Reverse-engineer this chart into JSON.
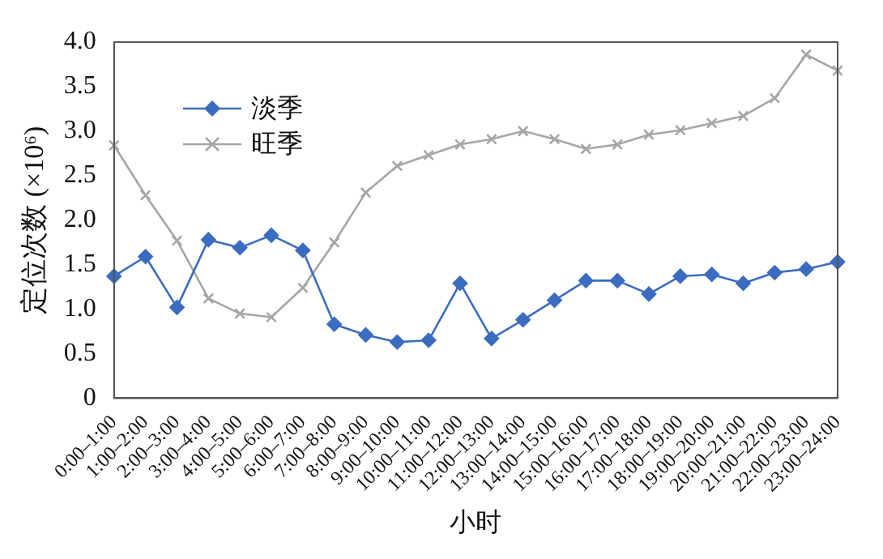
{
  "chart_data": {
    "type": "line",
    "xlabel": "小时",
    "ylabel": "定位次数 (×10⁶)",
    "categories": [
      "0:00–1:00",
      "1:00–2:00",
      "2:00–3:00",
      "3:00–4:00",
      "4:00–5:00",
      "5:00–6:00",
      "6:00–7:00",
      "7:00–8:00",
      "8:00–9:00",
      "9:00–10:00",
      "10:00–11:00",
      "11:00–12:00",
      "12:00–13:00",
      "13:00–14:00",
      "14:00–15:00",
      "15:00–16:00",
      "16:00–17:00",
      "17:00–18:00",
      "18:00–19:00",
      "19:00–20:00",
      "20:00–21:00",
      "21:00–22:00",
      "22:00–23:00",
      "23:00–24:00"
    ],
    "series": [
      {
        "name": "淡季",
        "color": "#3b6cc0",
        "marker": "diamond",
        "values": [
          1.37,
          1.59,
          1.02,
          1.78,
          1.69,
          1.83,
          1.66,
          0.83,
          0.71,
          0.63,
          0.65,
          1.29,
          0.67,
          0.88,
          1.1,
          1.32,
          1.32,
          1.17,
          1.37,
          1.39,
          1.29,
          1.41,
          1.45,
          1.53
        ]
      },
      {
        "name": "旺季",
        "color": "#a6a6a6",
        "marker": "cross",
        "values": [
          2.84,
          2.28,
          1.77,
          1.12,
          0.95,
          0.91,
          1.24,
          1.75,
          2.31,
          2.61,
          2.73,
          2.85,
          2.91,
          3.0,
          2.91,
          2.8,
          2.85,
          2.96,
          3.01,
          3.09,
          3.17,
          3.37,
          3.86,
          3.68
        ]
      }
    ],
    "ylim": [
      0,
      4
    ],
    "yticks": [
      0,
      0.5,
      {
        "value": 1,
        "label": "1.0"
      },
      1.5,
      {
        "value": 2,
        "label": "2.0"
      },
      2.5,
      {
        "value": 3,
        "label": "3.0"
      },
      3.5,
      {
        "value": 4,
        "label": "4.0"
      }
    ],
    "grid": false,
    "legend": "top left",
    "line_style": "solid"
  }
}
